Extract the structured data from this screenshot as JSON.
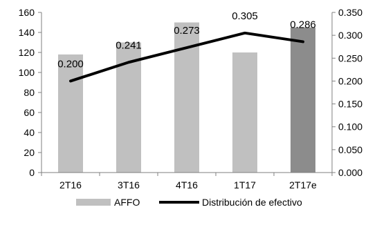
{
  "chart_data": {
    "type": "bar",
    "categories": [
      "2T16",
      "3T16",
      "4T16",
      "1T17",
      "2T17e"
    ],
    "series": [
      {
        "name": "AFFO",
        "type": "bar",
        "axis": "left",
        "values": [
          118,
          130,
          150,
          120,
          145
        ],
        "colors": [
          "#c0c0c0",
          "#c0c0c0",
          "#c0c0c0",
          "#c0c0c0",
          "#8c8c8c"
        ]
      },
      {
        "name": "Distribución de efectivo",
        "type": "line",
        "axis": "right",
        "values": [
          0.2,
          0.241,
          0.273,
          0.305,
          0.286
        ],
        "labels": [
          "0.200",
          "0.241",
          "0.273",
          "0.305",
          "0.286"
        ],
        "color": "#000000"
      }
    ],
    "y_left": {
      "lim": [
        0,
        160
      ],
      "ticks": [
        0,
        20,
        40,
        60,
        80,
        100,
        120,
        140,
        160
      ],
      "tick_labels": [
        "0",
        "20",
        "40",
        "60",
        "80",
        "100",
        "120",
        "140",
        "160"
      ]
    },
    "y_right": {
      "lim": [
        0,
        0.35
      ],
      "ticks": [
        0,
        0.05,
        0.1,
        0.15,
        0.2,
        0.25,
        0.3,
        0.35
      ],
      "tick_labels": [
        "0.000",
        "0.050",
        "0.100",
        "0.150",
        "0.200",
        "0.250",
        "0.300",
        "0.350"
      ]
    },
    "grid": false,
    "legend_position": "bottom"
  }
}
